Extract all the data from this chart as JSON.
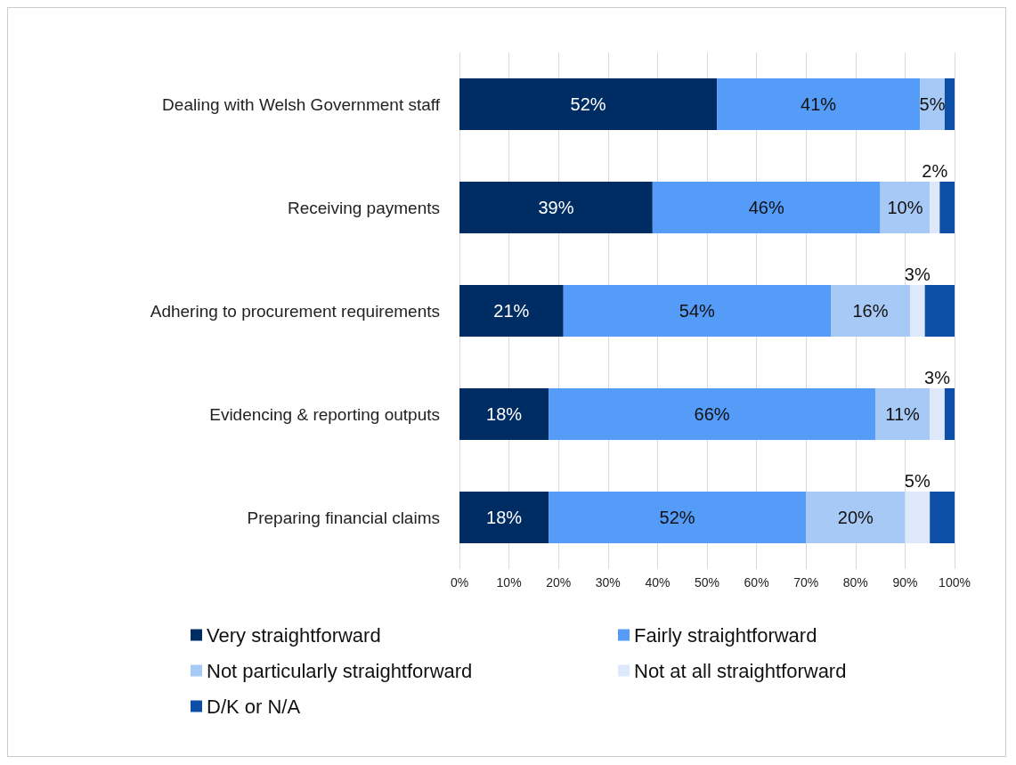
{
  "chart_data": {
    "type": "bar",
    "orientation": "horizontal",
    "stacked": true,
    "categories": [
      "Dealing with Welsh Government staff",
      "Receiving payments",
      "Adhering to procurement requirements",
      "Evidencing & reporting outputs",
      "Preparing financial claims"
    ],
    "series": [
      {
        "name": "Very straightforward",
        "color": "#002c64",
        "values": [
          52,
          39,
          21,
          18,
          18
        ],
        "value_labels": [
          "52%",
          "39%",
          "21%",
          "18%",
          "18%"
        ]
      },
      {
        "name": "Fairly straightforward",
        "color": "#559bf8",
        "values": [
          41,
          46,
          54,
          66,
          52
        ],
        "value_labels": [
          "41%",
          "46%",
          "54%",
          "66%",
          "52%"
        ]
      },
      {
        "name": "Not particularly straightforward",
        "color": "#a7c9f5",
        "values": [
          5,
          10,
          16,
          11,
          20
        ],
        "value_labels": [
          "5%",
          "10%",
          "16%",
          "11%",
          "20%"
        ]
      },
      {
        "name": "Not at all straightforward",
        "color": "#dde9fb",
        "values": [
          null,
          2,
          3,
          3,
          5
        ],
        "value_labels": [
          null,
          "2%",
          "3%",
          "3%",
          "5%"
        ]
      },
      {
        "name": "D/K or N/A",
        "color": "#0d4ea6",
        "values": [
          2,
          3,
          6,
          2,
          5
        ],
        "value_labels": [
          null,
          null,
          null,
          null,
          null
        ]
      }
    ],
    "xlim": [
      0,
      100
    ],
    "xticks": [
      {
        "value": 0,
        "label": "0%"
      },
      {
        "value": 10,
        "label": "10%"
      },
      {
        "value": 20,
        "label": "20%"
      },
      {
        "value": 30,
        "label": "30%"
      },
      {
        "value": 40,
        "label": "40%"
      },
      {
        "value": 50,
        "label": "50%"
      },
      {
        "value": 60,
        "label": "60%"
      },
      {
        "value": 70,
        "label": "70%"
      },
      {
        "value": 80,
        "label": "80%"
      },
      {
        "value": 90,
        "label": "90%"
      },
      {
        "value": 100,
        "label": "100%"
      }
    ],
    "grid": "x",
    "legend": "bottom"
  }
}
